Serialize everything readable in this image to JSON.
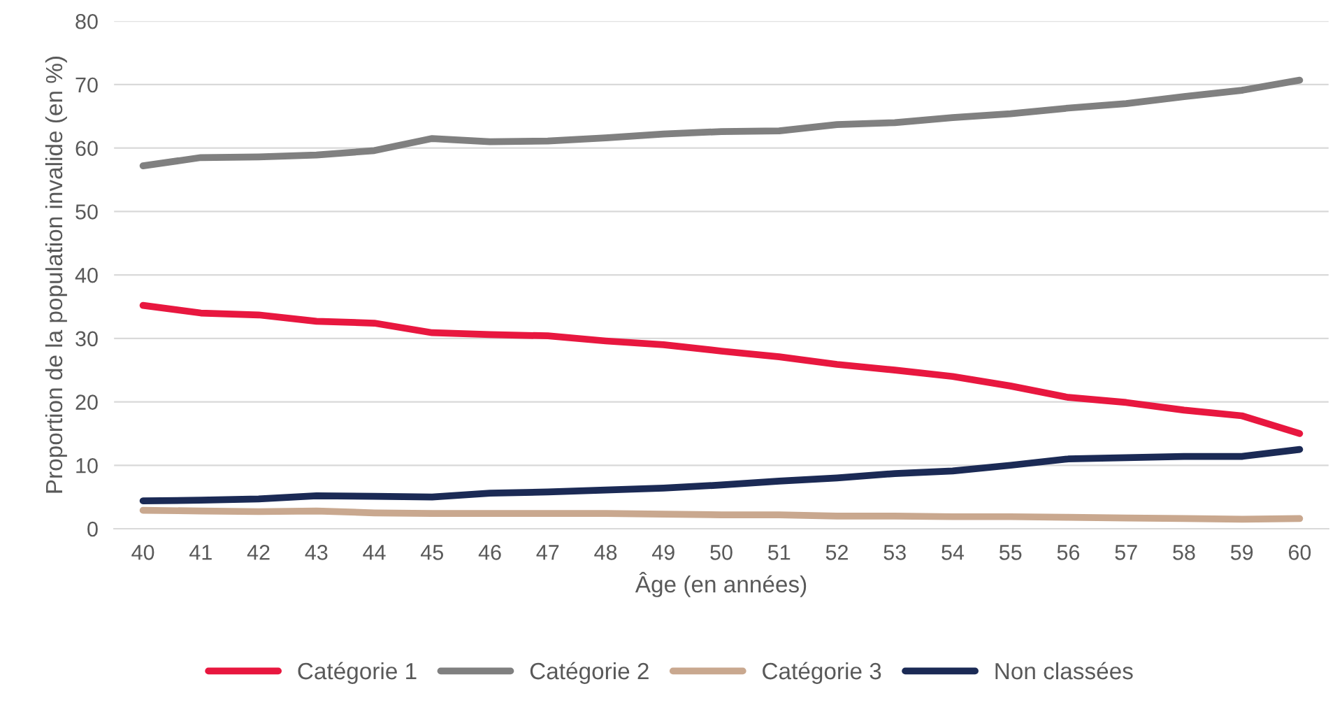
{
  "chart_data": {
    "type": "line",
    "xlabel": "Âge (en années)",
    "ylabel": "Proportion de la population invalide (en %)",
    "categories": [
      "40",
      "41",
      "42",
      "43",
      "44",
      "45",
      "46",
      "47",
      "48",
      "49",
      "50",
      "51",
      "52",
      "53",
      "54",
      "55",
      "56",
      "57",
      "58",
      "59",
      "60"
    ],
    "series": [
      {
        "name": "Catégorie 1",
        "color": "#e8173f",
        "values": [
          35.2,
          34.0,
          33.7,
          32.7,
          32.4,
          30.9,
          30.6,
          30.4,
          29.6,
          29.0,
          28.0,
          27.1,
          25.9,
          25.0,
          24.0,
          22.5,
          20.7,
          19.9,
          18.7,
          17.8,
          15.0
        ]
      },
      {
        "name": "Catégorie 2",
        "color": "#808080",
        "values": [
          57.2,
          58.5,
          58.6,
          58.9,
          59.6,
          61.5,
          61.0,
          61.1,
          61.6,
          62.2,
          62.6,
          62.7,
          63.7,
          64.0,
          64.8,
          65.4,
          66.3,
          67.0,
          68.1,
          69.1,
          70.7
        ]
      },
      {
        "name": "Catégorie 3",
        "color": "#c9a88f",
        "values": [
          2.9,
          2.8,
          2.7,
          2.8,
          2.5,
          2.4,
          2.4,
          2.4,
          2.4,
          2.3,
          2.2,
          2.2,
          2.0,
          2.0,
          1.9,
          1.9,
          1.8,
          1.7,
          1.6,
          1.5,
          1.6
        ]
      },
      {
        "name": "Non classées",
        "color": "#1b2a55",
        "values": [
          4.4,
          4.5,
          4.7,
          5.2,
          5.1,
          5.0,
          5.6,
          5.8,
          6.1,
          6.4,
          6.9,
          7.5,
          8.0,
          8.7,
          9.1,
          10.0,
          11.0,
          11.2,
          11.4,
          11.4,
          12.5
        ]
      }
    ],
    "ylim": [
      0,
      80
    ],
    "yticks": [
      0,
      10,
      20,
      30,
      40,
      50,
      60,
      70,
      80
    ],
    "grid": "y",
    "legend": "bottom",
    "marker": "none",
    "line_style": "solid"
  }
}
